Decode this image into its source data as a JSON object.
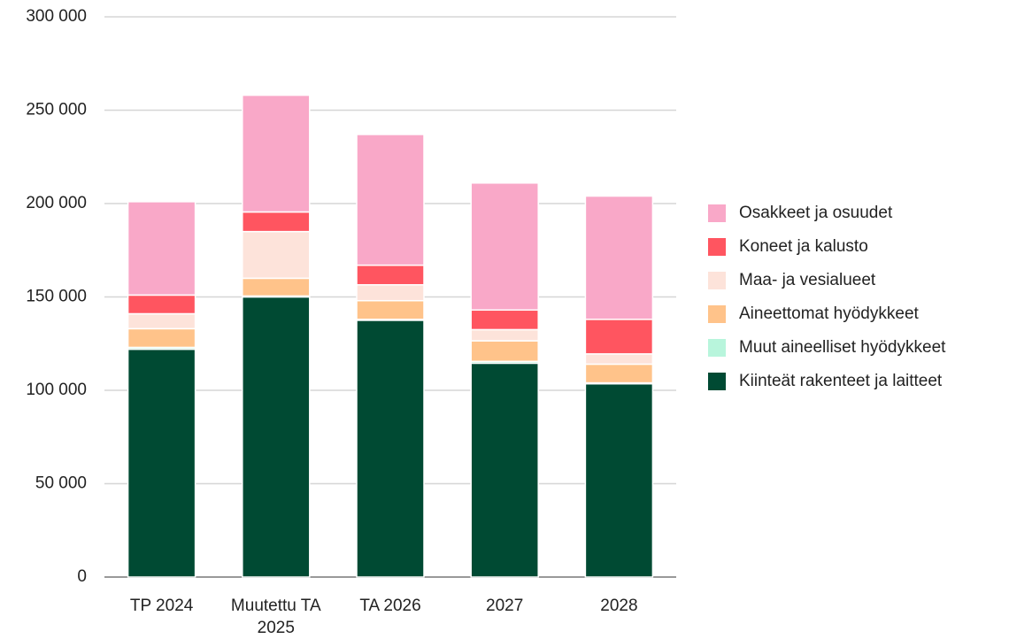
{
  "chart_data": {
    "type": "stacked_bar",
    "categories": [
      "TP 2024",
      "Muutettu TA 2025",
      "TA 2026",
      "2027",
      "2028"
    ],
    "series": [
      {
        "name": "Kiinteät rakenteet ja laitteet",
        "color": "#004a33",
        "values": [
          122000,
          150000,
          137500,
          114500,
          103500
        ]
      },
      {
        "name": "Muut aineelliset hyödykkeet",
        "color": "#b8f5dc",
        "values": [
          1000,
          500,
          500,
          1000,
          500
        ]
      },
      {
        "name": "Aineettomat hyödykkeet",
        "color": "#ffc38a",
        "values": [
          10000,
          9500,
          10000,
          11000,
          10000
        ]
      },
      {
        "name": "Maa- ja vesialueet",
        "color": "#fde3da",
        "values": [
          8000,
          25000,
          8500,
          6000,
          5500
        ]
      },
      {
        "name": "Koneet ja kalusto",
        "color": "#ff5560",
        "values": [
          10000,
          10500,
          10500,
          10500,
          18500
        ]
      },
      {
        "name": "Osakkeet ja osuudet",
        "color": "#f9a8c8",
        "values": [
          50000,
          62500,
          70000,
          68000,
          66000
        ]
      }
    ],
    "ylim": [
      0,
      300000
    ],
    "yticks": [
      0,
      {
        "value": 50000,
        "label": "50 000"
      },
      {
        "value": 100000,
        "label": "100 000"
      },
      {
        "value": 150000,
        "label": "150 000"
      },
      {
        "value": 200000,
        "label": "200 000"
      },
      {
        "value": 250000,
        "label": "250 000"
      },
      {
        "value": 300000,
        "label": "300 000"
      }
    ],
    "grid": true
  }
}
